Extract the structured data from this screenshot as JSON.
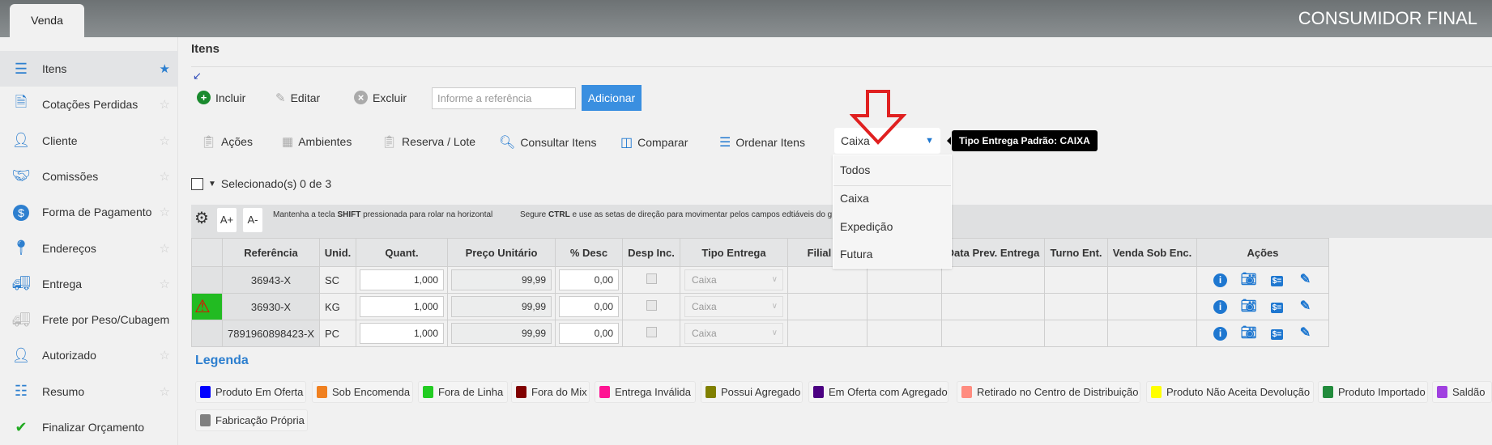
{
  "header": {
    "tab": "Venda",
    "customer": "CONSUMIDOR FINAL"
  },
  "sidebar": {
    "items": [
      {
        "label": "Itens",
        "icon": "list-icon",
        "active": true,
        "starred": true
      },
      {
        "label": "Cotações Perdidas",
        "icon": "document-icon"
      },
      {
        "label": "Cliente",
        "icon": "user-icon"
      },
      {
        "label": "Comissões",
        "icon": "handshake-icon"
      },
      {
        "label": "Forma de Pagamento",
        "icon": "dollar-icon"
      },
      {
        "label": "Endereços",
        "icon": "map-pin-icon"
      },
      {
        "label": "Entrega",
        "icon": "truck-icon"
      },
      {
        "label": "Frete por Peso/Cubagem",
        "icon": "fast-truck-icon"
      },
      {
        "label": "Autorizado",
        "icon": "user-check-icon"
      },
      {
        "label": "Resumo",
        "icon": "summary-icon"
      },
      {
        "label": "Finalizar Orçamento",
        "icon": "check-icon"
      }
    ]
  },
  "main": {
    "title": "Itens",
    "toolbar": {
      "include": "Incluir",
      "edit": "Editar",
      "delete": "Excluir",
      "ref_placeholder": "Informe a referência",
      "add": "Adicionar"
    },
    "actions": {
      "acoes": "Ações",
      "ambientes": "Ambientes",
      "reserva": "Reserva / Lote",
      "consultar": "Consultar Itens",
      "comparar": "Comparar",
      "ordenar": "Ordenar Itens"
    },
    "delivery_select": {
      "value": "Caixa",
      "options": [
        "Todos",
        "Caixa",
        "Expedição",
        "Futura"
      ],
      "tooltip": "Tipo Entrega Padrão: CAIXA"
    },
    "selection": "Selecionado(s) 0 de 3",
    "grid": {
      "font_up": "A+",
      "font_down": "A-",
      "note1_pre": "Mantenha a tecla ",
      "note1_key": "SHIFT",
      "note1_post": " pressionada para rolar na horizontal",
      "note2_pre": "Segure ",
      "note2_key": "CTRL",
      "note2_post": " e use as setas de direção para movimentar pelos campos edtiáveis do g"
    },
    "table": {
      "columns": [
        "",
        "Referência",
        "Unid.",
        "Quant.",
        "Preço Unitário",
        "% Desc",
        "Desp Inc.",
        "Tipo Entrega",
        "Filial Re",
        "",
        "Data Prev. Entrega",
        "Turno Ent.",
        "Venda Sob Enc.",
        "Ações"
      ],
      "rows": [
        {
          "ref": "36943-X",
          "unit": "SC",
          "qty": "1,000",
          "price": "99,99",
          "disc": "0,00",
          "tipo": "Caixa",
          "warning": false
        },
        {
          "ref": "36930-X",
          "unit": "KG",
          "qty": "1,000",
          "price": "99,99",
          "disc": "0,00",
          "tipo": "Caixa",
          "warning": true
        },
        {
          "ref": "7891960898423-X",
          "unit": "PC",
          "qty": "1,000",
          "price": "99,99",
          "disc": "0,00",
          "tipo": "Caixa",
          "warning": false
        }
      ]
    },
    "legend": {
      "title": "Legenda",
      "items": [
        {
          "label": "Produto Em Oferta",
          "color": "#0000ff"
        },
        {
          "label": "Sob Encomenda",
          "color": "#f08020"
        },
        {
          "label": "Fora de Linha",
          "color": "#22cc22"
        },
        {
          "label": "Fora do Mix",
          "color": "#800000"
        },
        {
          "label": "Entrega Inválida",
          "color": "#ff1493"
        },
        {
          "label": "Possui Agregado",
          "color": "#808000"
        },
        {
          "label": "Em Oferta com Agregado",
          "color": "#4b0082"
        },
        {
          "label": "Retirado no Centro de Distribuição",
          "color": "#ff8c80"
        },
        {
          "label": "Produto Não Aceita Devolução",
          "color": "#ffff00"
        },
        {
          "label": "Produto Importado",
          "color": "#228b3c"
        },
        {
          "label": "Saldão",
          "color": "#a040e0"
        },
        {
          "label": "Fabricação Própria",
          "color": "#808080"
        }
      ]
    }
  }
}
